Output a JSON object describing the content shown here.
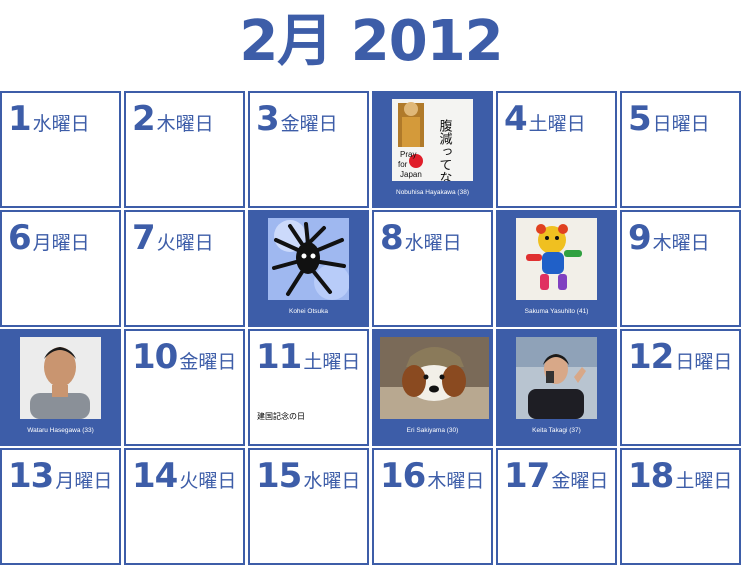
{
  "title": "2月 2012",
  "days": [
    {
      "num": "1",
      "weekday": "水曜日"
    },
    {
      "num": "2",
      "weekday": "木曜日"
    },
    {
      "num": "3",
      "weekday": "金曜日"
    },
    {
      "num": "4",
      "weekday": "土曜日"
    },
    {
      "num": "5",
      "weekday": "日曜日"
    },
    {
      "num": "6",
      "weekday": "月曜日"
    },
    {
      "num": "7",
      "weekday": "火曜日"
    },
    {
      "num": "8",
      "weekday": "水曜日"
    },
    {
      "num": "9",
      "weekday": "木曜日"
    },
    {
      "num": "10",
      "weekday": "金曜日"
    },
    {
      "num": "11",
      "weekday": "土曜日",
      "note": "建国記念の日"
    },
    {
      "num": "12",
      "weekday": "日曜日"
    },
    {
      "num": "13",
      "weekday": "月曜日"
    },
    {
      "num": "14",
      "weekday": "火曜日"
    },
    {
      "num": "15",
      "weekday": "水曜日"
    },
    {
      "num": "16",
      "weekday": "木曜日"
    },
    {
      "num": "17",
      "weekday": "金曜日"
    },
    {
      "num": "18",
      "weekday": "土曜日"
    }
  ],
  "photos": [
    {
      "caption": "Nobuhisa Hayakawa (38)",
      "sign_text": "腹減ってないの",
      "pray_text": "Pray for Japan"
    },
    {
      "caption": "Kohei Otsuka"
    },
    {
      "caption": "Sakuma Yasuhito (41)"
    },
    {
      "caption": "Wataru Hasegawa (33)"
    },
    {
      "caption": "Eri Sakiyama (30)"
    },
    {
      "caption": "Keita Takagi (37)"
    }
  ],
  "colors": {
    "accent": "#3d5da8",
    "background": "#ffffff"
  }
}
